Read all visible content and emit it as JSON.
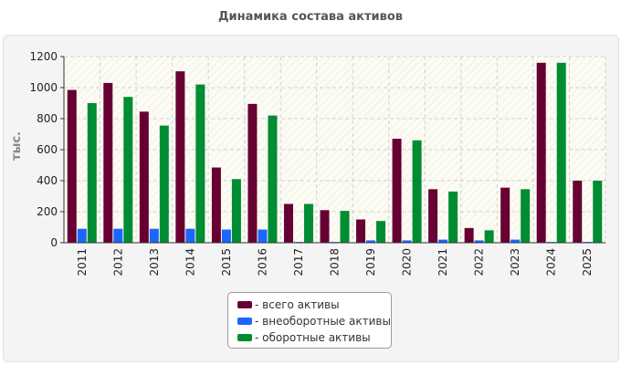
{
  "chart_data": {
    "type": "bar",
    "title": "Динамика состава активов",
    "ylabel": "тыс.",
    "xlabel": "",
    "ylim": [
      0,
      1200
    ],
    "yticks": [
      0,
      200,
      400,
      600,
      800,
      1000,
      1200
    ],
    "grid": true,
    "legend_position": "bottom",
    "categories": [
      "2011",
      "2012",
      "2013",
      "2014",
      "2015",
      "2016",
      "2017",
      "2018",
      "2019",
      "2020",
      "2021",
      "2022",
      "2023",
      "2024",
      "2025"
    ],
    "series": [
      {
        "name": "- всего активы",
        "color": "#660033",
        "values": [
          985,
          1030,
          845,
          1105,
          485,
          895,
          250,
          210,
          150,
          670,
          345,
          95,
          355,
          1160,
          400
        ]
      },
      {
        "name": "- внеоборотные активы",
        "color": "#1a66ff",
        "values": [
          90,
          90,
          90,
          90,
          85,
          85,
          5,
          5,
          15,
          15,
          20,
          15,
          20,
          5,
          5
        ]
      },
      {
        "name": "- оборотные активы",
        "color": "#008c33",
        "values": [
          900,
          940,
          755,
          1020,
          410,
          820,
          250,
          205,
          140,
          660,
          330,
          80,
          345,
          1160,
          400
        ]
      }
    ]
  }
}
